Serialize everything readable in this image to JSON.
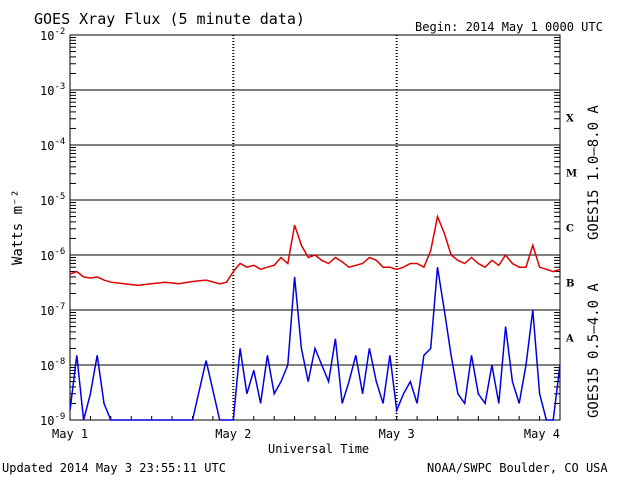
{
  "header": {
    "title": "GOES Xray Flux (5 minute data)",
    "begin": "Begin:  2014 May 1 0000 UTC"
  },
  "footer": {
    "updated": "Updated 2014 May  3 23:55:11 UTC",
    "credit": "NOAA/SWPC Boulder, CO USA"
  },
  "chart_data": {
    "type": "line",
    "title": "GOES Xray Flux (5 minute data)",
    "xlabel": "Universal Time",
    "ylabel": "Watts m⁻²",
    "y_scale": "log",
    "ylim": [
      1e-09,
      0.01
    ],
    "xlim": [
      0,
      72
    ],
    "x_unit": "hours since 2014 May 1 0000 UTC",
    "grid": true,
    "x_ticks": [
      {
        "x": 0,
        "label": "May 1"
      },
      {
        "x": 24,
        "label": "May 2"
      },
      {
        "x": 48,
        "label": "May 3"
      },
      {
        "x": 72,
        "label": "May 4"
      }
    ],
    "y_ticks": [
      {
        "exp": -9,
        "label": "10",
        "sup": "-9"
      },
      {
        "exp": -8,
        "label": "10",
        "sup": "-8"
      },
      {
        "exp": -7,
        "label": "10",
        "sup": "-7"
      },
      {
        "exp": -6,
        "label": "10",
        "sup": "-6"
      },
      {
        "exp": -5,
        "label": "10",
        "sup": "-5"
      },
      {
        "exp": -4,
        "label": "10",
        "sup": "-4"
      },
      {
        "exp": -3,
        "label": "10",
        "sup": "-3"
      },
      {
        "exp": -2,
        "label": "10",
        "sup": "-2"
      }
    ],
    "flare_classes": [
      {
        "label": "A",
        "exp": -7.5
      },
      {
        "label": "B",
        "exp": -6.5
      },
      {
        "label": "C",
        "exp": -5.5
      },
      {
        "label": "M",
        "exp": -4.5
      },
      {
        "label": "X",
        "exp": -3.5
      }
    ],
    "series": [
      {
        "name": "GOES15 1.0–8.0 A",
        "color": "#e00000",
        "x": [
          0,
          1,
          2,
          3,
          4,
          5,
          6,
          8,
          10,
          12,
          14,
          16,
          18,
          20,
          22,
          23,
          24,
          25,
          26,
          27,
          28,
          29,
          30,
          31,
          32,
          33,
          34,
          35,
          36,
          37,
          38,
          39,
          40,
          41,
          42,
          43,
          44,
          45,
          46,
          47,
          48,
          49,
          50,
          51,
          52,
          53,
          54,
          55,
          56,
          57,
          58,
          59,
          60,
          61,
          62,
          63,
          64,
          65,
          66,
          67,
          68,
          69,
          70,
          71,
          72
        ],
        "y": [
          4.5e-07,
          5e-07,
          4e-07,
          3.8e-07,
          4e-07,
          3.5e-07,
          3.2e-07,
          3e-07,
          2.8e-07,
          3e-07,
          3.2e-07,
          3e-07,
          3.3e-07,
          3.5e-07,
          3e-07,
          3.2e-07,
          5e-07,
          7e-07,
          6e-07,
          6.5e-07,
          5.5e-07,
          6e-07,
          6.5e-07,
          9e-07,
          7e-07,
          3.5e-06,
          1.5e-06,
          9e-07,
          1e-06,
          8e-07,
          7e-07,
          9e-07,
          7.5e-07,
          6e-07,
          6.5e-07,
          7e-07,
          9e-07,
          8e-07,
          6e-07,
          6e-07,
          5.5e-07,
          6e-07,
          7e-07,
          7e-07,
          6e-07,
          1.2e-06,
          5e-06,
          2.5e-06,
          1e-06,
          8e-07,
          7e-07,
          9e-07,
          7e-07,
          6e-07,
          8e-07,
          6.5e-07,
          1e-06,
          7e-07,
          6e-07,
          6e-07,
          1.5e-06,
          6e-07,
          5.5e-07,
          5e-07,
          5.5e-07
        ]
      },
      {
        "name": "GOES15 0.5–4.0 A",
        "color": "#0000e0",
        "x": [
          0,
          1,
          2,
          3,
          4,
          5,
          6,
          8,
          10,
          12,
          14,
          16,
          18,
          20,
          22,
          23,
          24,
          25,
          26,
          27,
          28,
          29,
          30,
          31,
          32,
          33,
          34,
          35,
          36,
          37,
          38,
          39,
          40,
          41,
          42,
          43,
          44,
          45,
          46,
          47,
          48,
          49,
          50,
          51,
          52,
          53,
          54,
          55,
          56,
          57,
          58,
          59,
          60,
          61,
          62,
          63,
          64,
          65,
          66,
          67,
          68,
          69,
          70,
          71,
          72
        ],
        "y": [
          1.5e-09,
          1.5e-08,
          1e-09,
          3e-09,
          1.5e-08,
          2e-09,
          1e-09,
          1e-09,
          1e-09,
          1e-09,
          1e-09,
          1e-09,
          1e-09,
          1.2e-08,
          1e-09,
          1e-09,
          1e-09,
          2e-08,
          3e-09,
          8e-09,
          2e-09,
          1.5e-08,
          3e-09,
          5e-09,
          1e-08,
          4e-07,
          2e-08,
          5e-09,
          2e-08,
          1e-08,
          5e-09,
          3e-08,
          2e-09,
          5e-09,
          1.5e-08,
          3e-09,
          2e-08,
          5e-09,
          2e-09,
          1.5e-08,
          1.5e-09,
          3e-09,
          5e-09,
          2e-09,
          1.5e-08,
          2e-08,
          6e-07,
          1e-07,
          1.5e-08,
          3e-09,
          2e-09,
          1.5e-08,
          3e-09,
          2e-09,
          1e-08,
          2e-09,
          5e-08,
          5e-09,
          2e-09,
          1e-08,
          1e-07,
          3e-09,
          1e-09,
          1e-09,
          1e-08
        ]
      }
    ]
  }
}
